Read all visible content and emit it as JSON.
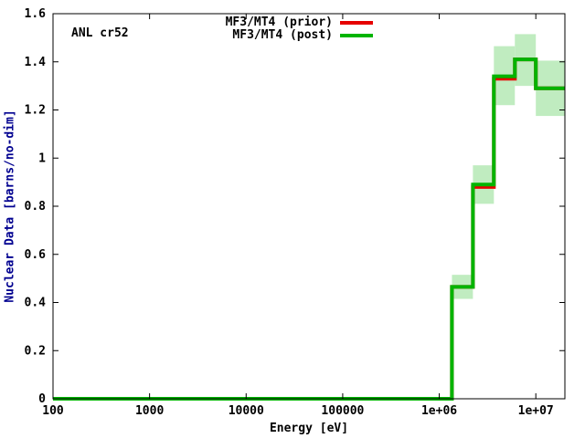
{
  "chart_data": {
    "type": "step-line",
    "annotation": "ANL cr52",
    "xlabel": "Energy [eV]",
    "ylabel": "Nuclear Data [barns/no-dim]",
    "x_scale": "log",
    "y_scale": "linear",
    "xlim": [
      100,
      20000000
    ],
    "ylim": [
      0,
      1.6
    ],
    "grid": false,
    "x_ticks": [
      {
        "value": 100,
        "label": "100"
      },
      {
        "value": 1000,
        "label": "1000"
      },
      {
        "value": 10000,
        "label": "10000"
      },
      {
        "value": 100000,
        "label": "100000"
      },
      {
        "value": 1000000,
        "label": "1e+06"
      },
      {
        "value": 10000000,
        "label": "1e+07"
      }
    ],
    "y_ticks": [
      {
        "value": 0,
        "label": "0"
      },
      {
        "value": 0.2,
        "label": "0.2"
      },
      {
        "value": 0.4,
        "label": "0.4"
      },
      {
        "value": 0.6,
        "label": "0.6"
      },
      {
        "value": 0.8,
        "label": "0.8"
      },
      {
        "value": 1,
        "label": "1"
      },
      {
        "value": 1.2,
        "label": "1.2"
      },
      {
        "value": 1.4,
        "label": "1.4"
      },
      {
        "value": 1.6,
        "label": "1.6"
      }
    ],
    "legend": {
      "position": "top-inside",
      "entries": [
        {
          "label": "MF3/MT4 (prior)",
          "color": "#e60000"
        },
        {
          "label": "MF3/MT4 (post)",
          "color": "#00b400"
        }
      ]
    },
    "group_edges_eV": [
      100,
      1353000,
      2231000,
      3679000,
      6065000,
      10000000,
      20000000
    ],
    "series": [
      {
        "name": "MF3/MT4 (prior)",
        "color": "#e60000",
        "values": [
          0,
          0.465,
          0.88,
          1.33,
          1.41,
          1.29
        ]
      },
      {
        "name": "MF3/MT4 (post)",
        "color": "#00b400",
        "values": [
          0,
          0.465,
          0.89,
          1.34,
          1.41,
          1.29
        ]
      }
    ],
    "post_uncertainty_band": {
      "color": "#c0ecc0",
      "lower": [
        null,
        0.415,
        0.81,
        1.22,
        1.3,
        1.175
      ],
      "upper": [
        null,
        0.515,
        0.97,
        1.465,
        1.515,
        1.405
      ]
    },
    "colors": {
      "border": "#000000",
      "ylabel_text": "#000090",
      "background": "#ffffff"
    }
  }
}
